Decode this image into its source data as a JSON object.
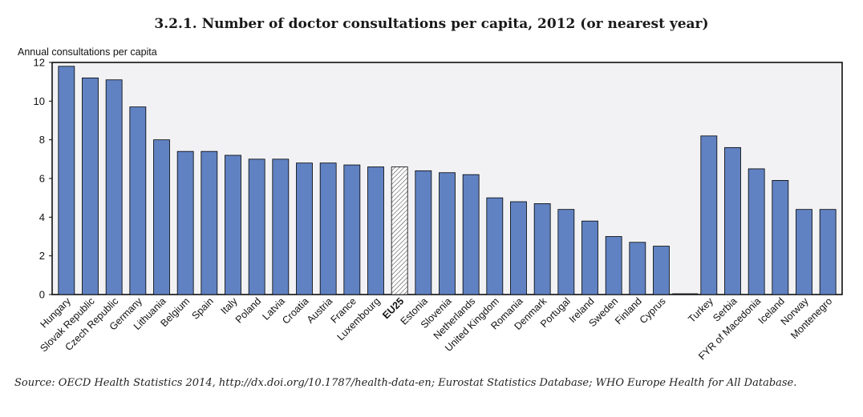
{
  "title": "3.2.1.  Number of doctor consultations per capita, 2012 (or nearest year)",
  "source": "Source:  OECD Health Statistics 2014, http://dx.doi.org/10.1787/health-data-en; Eurostat Statistics Database; WHO Europe Health for All Database.",
  "chart_data": {
    "type": "bar",
    "ylabel": "Annual consultations per capita",
    "ylim": [
      0,
      12
    ],
    "yticks": [
      0,
      2,
      4,
      6,
      8,
      10,
      12
    ],
    "grid": false,
    "categories": [
      "Hungary",
      "Slovak Republic",
      "Czech Republic",
      "Germany",
      "Lithuania",
      "Belgium",
      "Spain",
      "Italy",
      "Poland",
      "Latvia",
      "Croatia",
      "Austria",
      "France",
      "Luxembourg",
      "EU25",
      "Estonia",
      "Slovenia",
      "Netherlands",
      "United Kingdom",
      "Romania",
      "Denmark",
      "Portugal",
      "Ireland",
      "Sweden",
      "Finland",
      "Cyprus",
      "",
      "Turkey",
      "Serbia",
      "FYR of Macedonia",
      "Iceland",
      "Norway",
      "Montenegro"
    ],
    "values": [
      11.8,
      11.2,
      11.1,
      9.7,
      8.0,
      7.4,
      7.4,
      7.2,
      7.0,
      7.0,
      6.8,
      6.8,
      6.7,
      6.6,
      6.6,
      6.4,
      6.3,
      6.2,
      5.0,
      4.8,
      4.7,
      4.4,
      3.8,
      3.0,
      2.7,
      2.5,
      null,
      8.2,
      7.6,
      6.5,
      5.9,
      4.4,
      4.4
    ],
    "highlight": "EU25",
    "colors": {
      "bar": "#6082c2",
      "highlight": "#ffffff",
      "plot_bg": "#f2f2f5",
      "axis": "#000000"
    }
  }
}
